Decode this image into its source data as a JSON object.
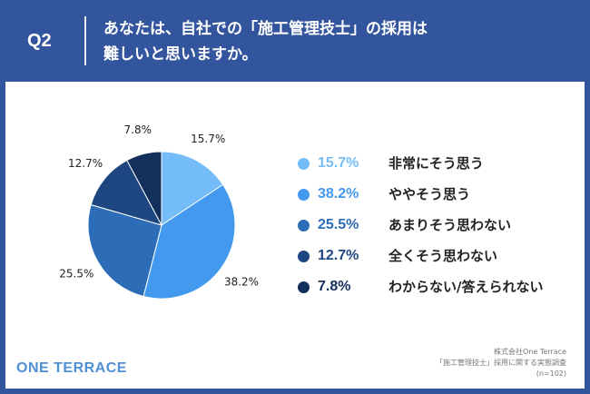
{
  "header": {
    "question_number": "Q2",
    "question_line1": "あなたは、自社での「施工管理技士」の採用は",
    "question_line2": "難しいと思いますか。"
  },
  "colors": {
    "header_bg": "#33559e",
    "series": [
      "#75bdf8",
      "#4399ee",
      "#2d6cb6",
      "#1e4680",
      "#13305c"
    ]
  },
  "chart_data": {
    "type": "pie",
    "categories": [
      "非常にそう思う",
      "ややそう思う",
      "あまりそう思わない",
      "全くそう思わない",
      "わからない/答えられない"
    ],
    "values": [
      15.7,
      38.2,
      25.5,
      12.7,
      7.8
    ],
    "value_labels": [
      "15.7%",
      "38.2%",
      "25.5%",
      "12.7%",
      "7.8%"
    ],
    "legend_position": "right"
  },
  "branding": {
    "logo_text": "ONE TERRACE"
  },
  "source": {
    "line1": "株式会社One Terrace",
    "line2": "「施工管理技士」採用に関する実態調査",
    "line3": "(n=102)"
  }
}
